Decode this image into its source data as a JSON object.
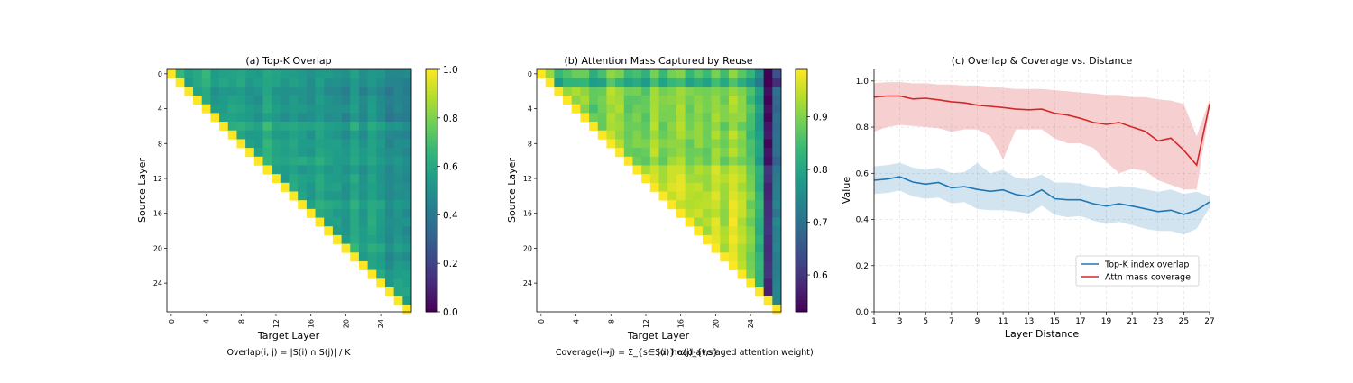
{
  "chart_data": [
    {
      "type": "heatmap",
      "title": "(a) Top-K Overlap",
      "xlabel": "Target Layer",
      "ylabel": "Source Layer",
      "n_layers": 28,
      "layout": "upper-triangular, diagonal = 1.0",
      "x_ticks": [
        "0",
        "4",
        "8",
        "12",
        "16",
        "20",
        "24"
      ],
      "y_ticks": [
        "0",
        "4",
        "8",
        "12",
        "16",
        "20",
        "24"
      ],
      "colormap": "viridis",
      "color_range": [
        0.0,
        1.0
      ],
      "colorbar_ticks": [
        "0.0",
        "0.2",
        "0.4",
        "0.6",
        "0.8",
        "1.0"
      ],
      "diagonal_value": 1.0,
      "typical_value_range": [
        0.45,
        0.65
      ],
      "formula": "Overlap(i, j) = |S(i) ∩ S(j)| / K"
    },
    {
      "type": "heatmap",
      "title": "(b) Attention Mass Captured by Reuse",
      "xlabel": "Target Layer",
      "ylabel": "Source Layer",
      "n_layers": 28,
      "layout": "upper-triangular, diagonal = 1.0",
      "x_ticks": [
        "0",
        "4",
        "8",
        "12",
        "16",
        "20",
        "24"
      ],
      "y_ticks": [
        "0",
        "4",
        "8",
        "12",
        "16",
        "20",
        "24"
      ],
      "colormap": "viridis",
      "color_range": [
        0.53,
        0.99
      ],
      "colorbar_ticks": [
        "0.6",
        "0.7",
        "0.8",
        "0.9"
      ],
      "low_columns": [
        26,
        27
      ],
      "typical_value_range": [
        0.8,
        0.97
      ],
      "formula": "Coverage(i→j) = Σ_{s∈S(i)} α(j)_{t,s}",
      "formula_note": "(α: head-averaged attention weight)"
    },
    {
      "type": "line",
      "title": "(c) Overlap & Coverage vs. Distance",
      "xlabel": "Layer Distance",
      "ylabel": "Value",
      "xlim": [
        1,
        27
      ],
      "ylim": [
        0.0,
        1.05
      ],
      "grid": true,
      "x_ticks": [
        "1",
        "3",
        "5",
        "7",
        "9",
        "11",
        "13",
        "15",
        "17",
        "19",
        "21",
        "23",
        "25",
        "27"
      ],
      "y_ticks": [
        "0.0",
        "0.2",
        "0.4",
        "0.6",
        "0.8",
        "1.0"
      ],
      "legend": "lower-right",
      "x": [
        1,
        2,
        3,
        4,
        5,
        6,
        7,
        8,
        9,
        10,
        11,
        12,
        13,
        14,
        15,
        16,
        17,
        18,
        19,
        20,
        21,
        22,
        23,
        24,
        25,
        26,
        27
      ],
      "series": [
        {
          "name": "Top-K index overlap",
          "color": "#1f77b4",
          "values": [
            0.57,
            0.575,
            0.585,
            0.562,
            0.553,
            0.56,
            0.537,
            0.542,
            0.53,
            0.522,
            0.528,
            0.508,
            0.5,
            0.528,
            0.49,
            0.485,
            0.485,
            0.468,
            0.458,
            0.468,
            0.458,
            0.446,
            0.434,
            0.44,
            0.422,
            0.44,
            0.476
          ],
          "band_upper": [
            0.63,
            0.635,
            0.645,
            0.625,
            0.615,
            0.625,
            0.6,
            0.605,
            0.645,
            0.6,
            0.615,
            0.58,
            0.575,
            0.595,
            0.56,
            0.56,
            0.555,
            0.54,
            0.535,
            0.545,
            0.54,
            0.53,
            0.52,
            0.53,
            0.51,
            0.52,
            0.5
          ],
          "band_lower": [
            0.51,
            0.515,
            0.525,
            0.5,
            0.49,
            0.495,
            0.47,
            0.475,
            0.445,
            0.44,
            0.44,
            0.435,
            0.425,
            0.46,
            0.42,
            0.41,
            0.415,
            0.395,
            0.38,
            0.39,
            0.375,
            0.36,
            0.35,
            0.35,
            0.335,
            0.36,
            0.45
          ]
        },
        {
          "name": "Attn mass coverage",
          "color": "#d62728",
          "values": [
            0.93,
            0.935,
            0.935,
            0.922,
            0.925,
            0.918,
            0.91,
            0.905,
            0.895,
            0.89,
            0.885,
            0.878,
            0.875,
            0.878,
            0.86,
            0.852,
            0.838,
            0.82,
            0.812,
            0.82,
            0.8,
            0.782,
            0.74,
            0.752,
            0.7,
            0.635,
            0.9
          ],
          "band_upper": [
            0.99,
            0.995,
            0.995,
            0.99,
            0.99,
            0.985,
            0.985,
            0.98,
            0.98,
            0.975,
            0.97,
            0.965,
            0.965,
            0.965,
            0.96,
            0.955,
            0.95,
            0.945,
            0.94,
            0.94,
            0.93,
            0.93,
            0.92,
            0.915,
            0.9,
            0.76,
            0.92
          ],
          "band_lower": [
            0.78,
            0.8,
            0.81,
            0.805,
            0.8,
            0.795,
            0.78,
            0.79,
            0.79,
            0.76,
            0.66,
            0.79,
            0.79,
            0.79,
            0.75,
            0.73,
            0.73,
            0.71,
            0.65,
            0.6,
            0.62,
            0.61,
            0.57,
            0.55,
            0.53,
            0.53,
            0.88
          ]
        }
      ]
    }
  ]
}
